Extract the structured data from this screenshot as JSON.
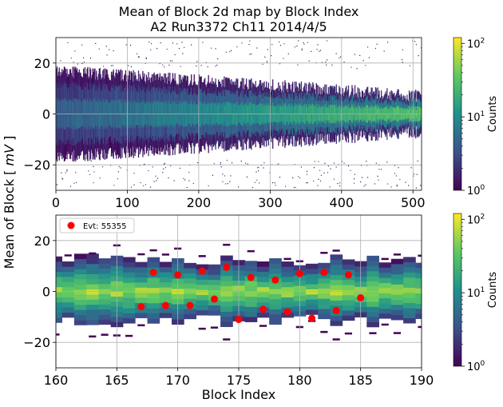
{
  "title": "Mean of Block 2d map by Block Index",
  "subtitle": "A2 Run3372 Ch11 2014/4/5",
  "chart_data": [
    {
      "type": "heatmap",
      "panel": "top",
      "xlabel": "",
      "ylabel": "Mean of Block [ mV ]",
      "xlim": [
        0,
        512
      ],
      "ylim": [
        -30,
        30
      ],
      "xticks": [
        "0",
        "100",
        "200",
        "300",
        "400",
        "500"
      ],
      "yticks": [
        "20",
        "0",
        "−20"
      ],
      "colorbar": {
        "label": "Counts",
        "scale": "log",
        "range": [
          1,
          120
        ],
        "ticks": [
          "10",
          "10",
          "10"
        ],
        "tick_exponents": [
          "2",
          "1",
          "0"
        ]
      },
      "grid": true
    },
    {
      "type": "heatmap",
      "panel": "bottom",
      "xlabel": "Block Index",
      "ylabel": "Mean of Block [ mV ]",
      "xlim": [
        160,
        190
      ],
      "ylim": [
        -30,
        30
      ],
      "xticks": [
        "160",
        "165",
        "170",
        "175",
        "180",
        "185",
        "190"
      ],
      "yticks": [
        "20",
        "0",
        "−20"
      ],
      "colorbar": {
        "label": "Counts",
        "scale": "log",
        "range": [
          1,
          120
        ],
        "ticks": [
          "10",
          "10",
          "10"
        ],
        "tick_exponents": [
          "2",
          "1",
          "0"
        ]
      },
      "legend": {
        "label": "Evt: 55355",
        "placement": "top-left"
      },
      "grid": true,
      "series": [
        {
          "name": "Evt: 55355",
          "type": "scatter",
          "color": "#ff0000",
          "x": [
            167,
            168,
            169,
            170,
            171,
            172,
            173,
            174,
            175,
            176,
            177,
            178,
            179,
            180,
            181,
            182,
            183,
            184,
            185
          ],
          "y": [
            -6,
            7.5,
            -5.5,
            6.5,
            -5.5,
            8,
            -3,
            9.5,
            -11,
            5.5,
            -7,
            4.5,
            -8,
            7,
            -10.5,
            7.5,
            -7.5,
            6.5,
            -2.5
          ]
        }
      ]
    }
  ]
}
